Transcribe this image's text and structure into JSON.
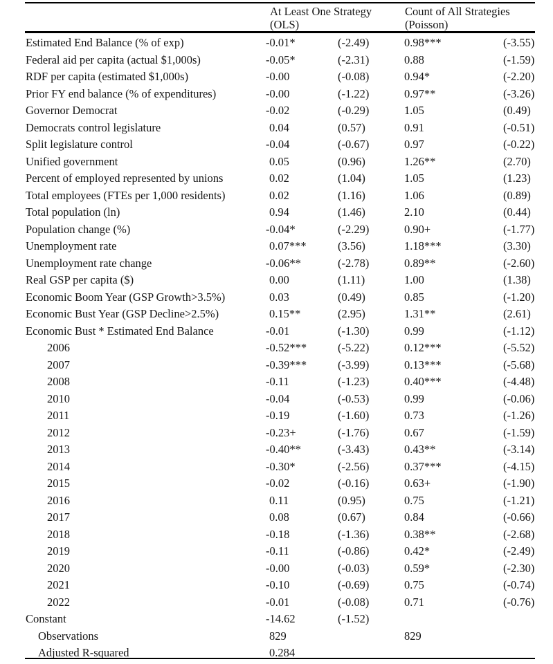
{
  "table": {
    "header": {
      "col1_line1": "At Least One Strategy",
      "col1_line2": "(OLS)",
      "col2_line1": "Count of All Strategies",
      "col2_line2": "(Poisson)"
    },
    "rows": [
      {
        "label": "Estimated End Balance (% of exp)",
        "indent": 0,
        "c1": "-0.01*",
        "c2": "(-2.49)",
        "c3": "0.98***",
        "c4": "(-3.55)"
      },
      {
        "label": "Federal aid per capita (actual $1,000s)",
        "indent": 0,
        "c1": "-0.05*",
        "c2": "(-2.31)",
        "c3": "0.88",
        "c4": "(-1.59)"
      },
      {
        "label": "RDF per capita (estimated $1,000s)",
        "indent": 0,
        "c1": "-0.00",
        "c2": "(-0.08)",
        "c3": "0.94*",
        "c4": "(-2.20)"
      },
      {
        "label": "Prior FY end balance (% of expenditures)",
        "indent": 0,
        "c1": "-0.00",
        "c2": "(-1.22)",
        "c3": "0.97**",
        "c4": "(-3.26)"
      },
      {
        "label": "Governor Democrat",
        "indent": 0,
        "c1": "-0.02",
        "c2": "(-0.29)",
        "c3": "1.05",
        "c4": "(0.49)"
      },
      {
        "label": "Democrats control legislature",
        "indent": 0,
        "c1": "0.04",
        "c2": "(0.57)",
        "c3": "0.91",
        "c4": "(-0.51)"
      },
      {
        "label": "Split legislature control",
        "indent": 0,
        "c1": "-0.04",
        "c2": "(-0.67)",
        "c3": "0.97",
        "c4": "(-0.22)"
      },
      {
        "label": "Unified government",
        "indent": 0,
        "c1": "0.05",
        "c2": "(0.96)",
        "c3": "1.26**",
        "c4": "(2.70)"
      },
      {
        "label": "Percent of employed represented by unions",
        "indent": 0,
        "c1": "0.02",
        "c2": "(1.04)",
        "c3": "1.05",
        "c4": "(1.23)"
      },
      {
        "label": "Total employees (FTEs per 1,000 residents)",
        "indent": 0,
        "c1": "0.02",
        "c2": "(1.16)",
        "c3": "1.06",
        "c4": "(0.89)"
      },
      {
        "label": "Total population (ln)",
        "indent": 0,
        "c1": "0.94",
        "c2": "(1.46)",
        "c3": "2.10",
        "c4": "(0.44)"
      },
      {
        "label": "Population change (%)",
        "indent": 0,
        "c1": "-0.04*",
        "c2": "(-2.29)",
        "c3": "0.90+",
        "c4": "(-1.77)"
      },
      {
        "label": "Unemployment rate",
        "indent": 0,
        "c1": "0.07***",
        "c2": "(3.56)",
        "c3": "1.18***",
        "c4": "(3.30)"
      },
      {
        "label": "Unemployment rate change",
        "indent": 0,
        "c1": "-0.06**",
        "c2": "(-2.78)",
        "c3": "0.89**",
        "c4": "(-2.60)"
      },
      {
        "label": "Real GSP per capita ($)",
        "indent": 0,
        "c1": "0.00",
        "c2": "(1.11)",
        "c3": "1.00",
        "c4": "(1.38)"
      },
      {
        "label": "Economic Boom Year (GSP Growth>3.5%)",
        "indent": 0,
        "c1": "0.03",
        "c2": "(0.49)",
        "c3": "0.85",
        "c4": "(-1.20)"
      },
      {
        "label": "Economic Bust Year (GSP Decline>2.5%)",
        "indent": 0,
        "c1": "0.15**",
        "c2": "(2.95)",
        "c3": "1.31**",
        "c4": "(2.61)"
      },
      {
        "label": "Economic Bust * Estimated End Balance",
        "indent": 0,
        "c1": "-0.01",
        "c2": "(-1.30)",
        "c3": "0.99",
        "c4": "(-1.12)"
      },
      {
        "label": "2006",
        "indent": 2,
        "c1": "-0.52***",
        "c2": "(-5.22)",
        "c3": "0.12***",
        "c4": "(-5.52)"
      },
      {
        "label": "2007",
        "indent": 2,
        "c1": "-0.39***",
        "c2": "(-3.99)",
        "c3": "0.13***",
        "c4": "(-5.68)"
      },
      {
        "label": "2008",
        "indent": 2,
        "c1": "-0.11",
        "c2": "(-1.23)",
        "c3": "0.40***",
        "c4": "(-4.48)"
      },
      {
        "label": "2010",
        "indent": 2,
        "c1": "-0.04",
        "c2": "(-0.53)",
        "c3": "0.99",
        "c4": "(-0.06)"
      },
      {
        "label": "2011",
        "indent": 2,
        "c1": "-0.19",
        "c2": "(-1.60)",
        "c3": "0.73",
        "c4": "(-1.26)"
      },
      {
        "label": "2012",
        "indent": 2,
        "c1": "-0.23+",
        "c2": "(-1.76)",
        "c3": "0.67",
        "c4": "(-1.59)"
      },
      {
        "label": "2013",
        "indent": 2,
        "c1": "-0.40**",
        "c2": "(-3.43)",
        "c3": "0.43**",
        "c4": "(-3.14)"
      },
      {
        "label": "2014",
        "indent": 2,
        "c1": "-0.30*",
        "c2": "(-2.56)",
        "c3": "0.37***",
        "c4": "(-4.15)"
      },
      {
        "label": "2015",
        "indent": 2,
        "c1": "-0.02",
        "c2": "(-0.16)",
        "c3": "0.63+",
        "c4": "(-1.90)"
      },
      {
        "label": "2016",
        "indent": 2,
        "c1": "0.11",
        "c2": "(0.95)",
        "c3": "0.75",
        "c4": "(-1.21)"
      },
      {
        "label": "2017",
        "indent": 2,
        "c1": "0.08",
        "c2": "(0.67)",
        "c3": "0.84",
        "c4": "(-0.66)"
      },
      {
        "label": "2018",
        "indent": 2,
        "c1": "-0.18",
        "c2": "(-1.36)",
        "c3": "0.38**",
        "c4": "(-2.68)"
      },
      {
        "label": "2019",
        "indent": 2,
        "c1": "-0.11",
        "c2": "(-0.86)",
        "c3": "0.42*",
        "c4": "(-2.49)"
      },
      {
        "label": "2020",
        "indent": 2,
        "c1": "-0.00",
        "c2": "(-0.03)",
        "c3": "0.59*",
        "c4": "(-2.30)"
      },
      {
        "label": "2021",
        "indent": 2,
        "c1": "-0.10",
        "c2": "(-0.69)",
        "c3": "0.75",
        "c4": "(-0.74)"
      },
      {
        "label": "2022",
        "indent": 2,
        "c1": "-0.01",
        "c2": "(-0.08)",
        "c3": "0.71",
        "c4": "(-0.76)"
      },
      {
        "label": "Constant",
        "indent": 0,
        "c1": "-14.62",
        "c2": "(-1.52)",
        "c3": "",
        "c4": ""
      },
      {
        "label": "Observations",
        "indent": 1,
        "c1": "829",
        "c2": "",
        "c3": "829",
        "c4": ""
      },
      {
        "label": "Adjusted R-squared",
        "indent": 1,
        "c1": "0.284",
        "c2": "",
        "c3": "",
        "c4": ""
      }
    ]
  }
}
